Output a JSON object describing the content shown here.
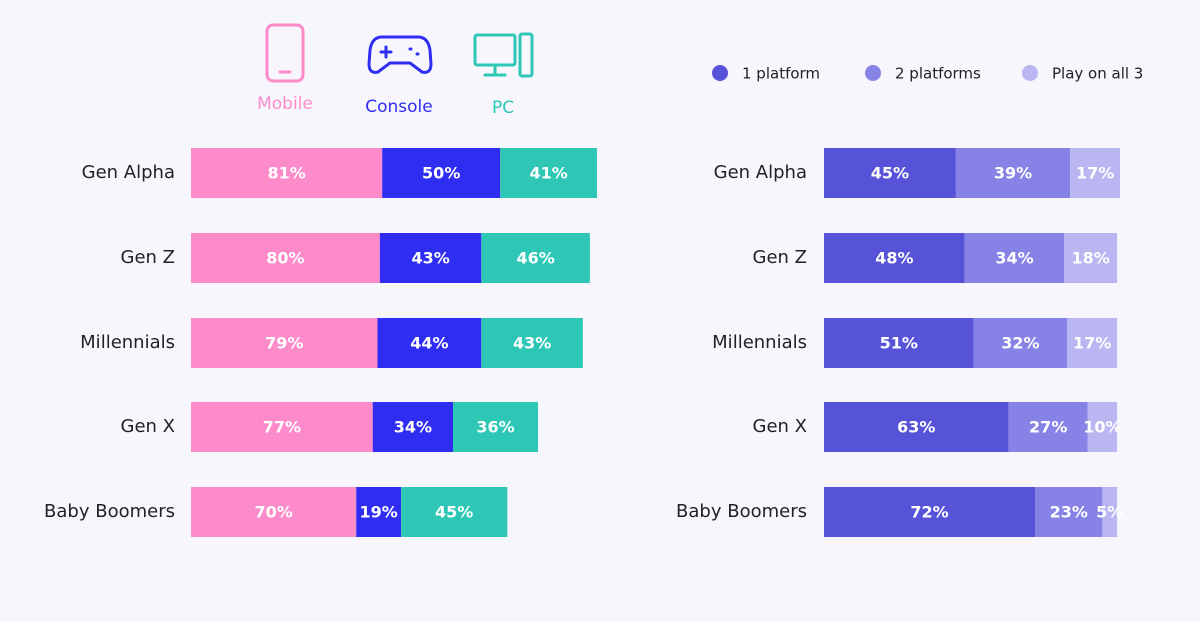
{
  "chart_data": [
    {
      "type": "stacked-bar",
      "categories": [
        "Gen Alpha",
        "Gen Z",
        "Millennials",
        "Gen X",
        "Baby Boomers"
      ],
      "series": [
        {
          "name": "Mobile",
          "color": "#fd8bc9",
          "values": [
            81,
            80,
            79,
            77,
            70
          ],
          "value_labels": [
            "81%",
            "80%",
            "79%",
            "77%",
            "70%"
          ]
        },
        {
          "name": "Console",
          "color": "#302df2",
          "values": [
            50,
            43,
            44,
            34,
            19
          ],
          "value_labels": [
            "50%",
            "43%",
            "44%",
            "34%",
            "19%"
          ]
        },
        {
          "name": "PC",
          "color": "#2ec7b6",
          "values": [
            41,
            46,
            43,
            36,
            45
          ],
          "value_labels": [
            "41%",
            "46%",
            "43%",
            "36%",
            "45%"
          ]
        }
      ]
    },
    {
      "type": "stacked-bar",
      "categories": [
        "Gen Alpha",
        "Gen Z",
        "Millennials",
        "Gen X",
        "Baby Boomers"
      ],
      "series": [
        {
          "name": "1 platform",
          "color": "#5653d9",
          "values": [
            45,
            48,
            51,
            63,
            72
          ],
          "value_labels": [
            "45%",
            "48%",
            "51%",
            "63%",
            "72%"
          ]
        },
        {
          "name": "2 platforms",
          "color": "#8783e6",
          "values": [
            39,
            34,
            32,
            27,
            23
          ],
          "value_labels": [
            "39%",
            "34%",
            "32%",
            "27%",
            "23%"
          ]
        },
        {
          "name": "Play on all 3",
          "color": "#b9b6f1",
          "values": [
            17,
            18,
            17,
            10,
            5
          ],
          "value_labels": [
            "17%",
            "18%",
            "17%",
            "10%",
            "5%"
          ]
        }
      ]
    }
  ]
}
